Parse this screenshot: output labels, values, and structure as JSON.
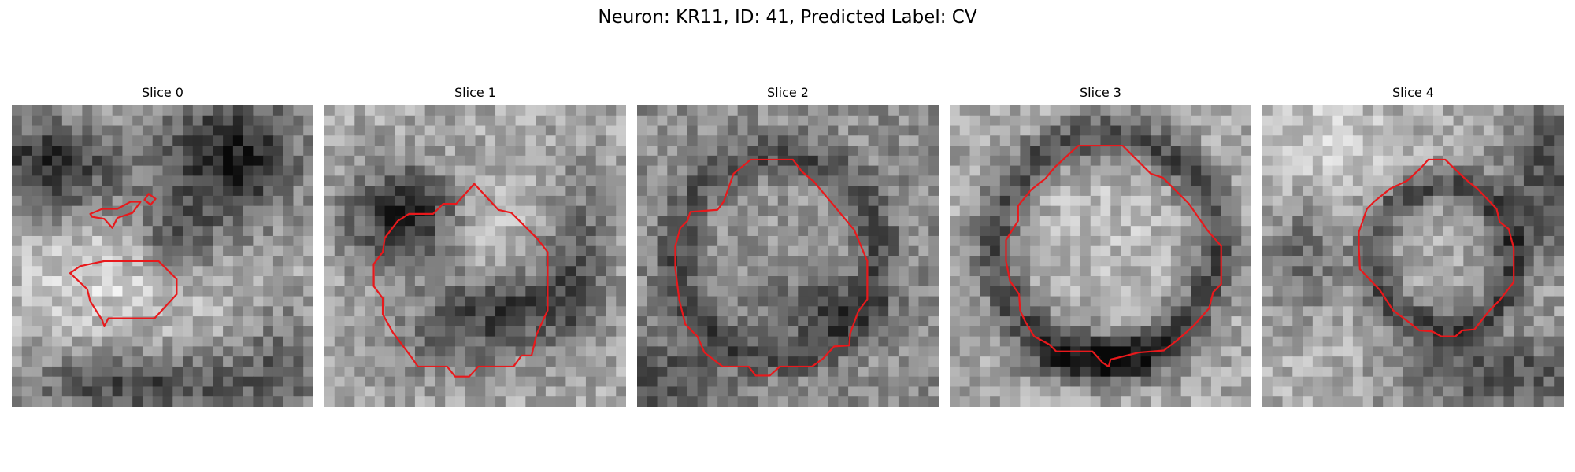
{
  "suptitle": "Neuron: KR11, ID: 41, Predicted Label: CV",
  "colors": {
    "contour": "#e8191c",
    "background": "#ffffff"
  },
  "slices": [
    {
      "title": "Slice 0"
    },
    {
      "title": "Slice 1"
    },
    {
      "title": "Slice 2"
    },
    {
      "title": "Slice 3"
    },
    {
      "title": "Slice 4"
    }
  ]
}
